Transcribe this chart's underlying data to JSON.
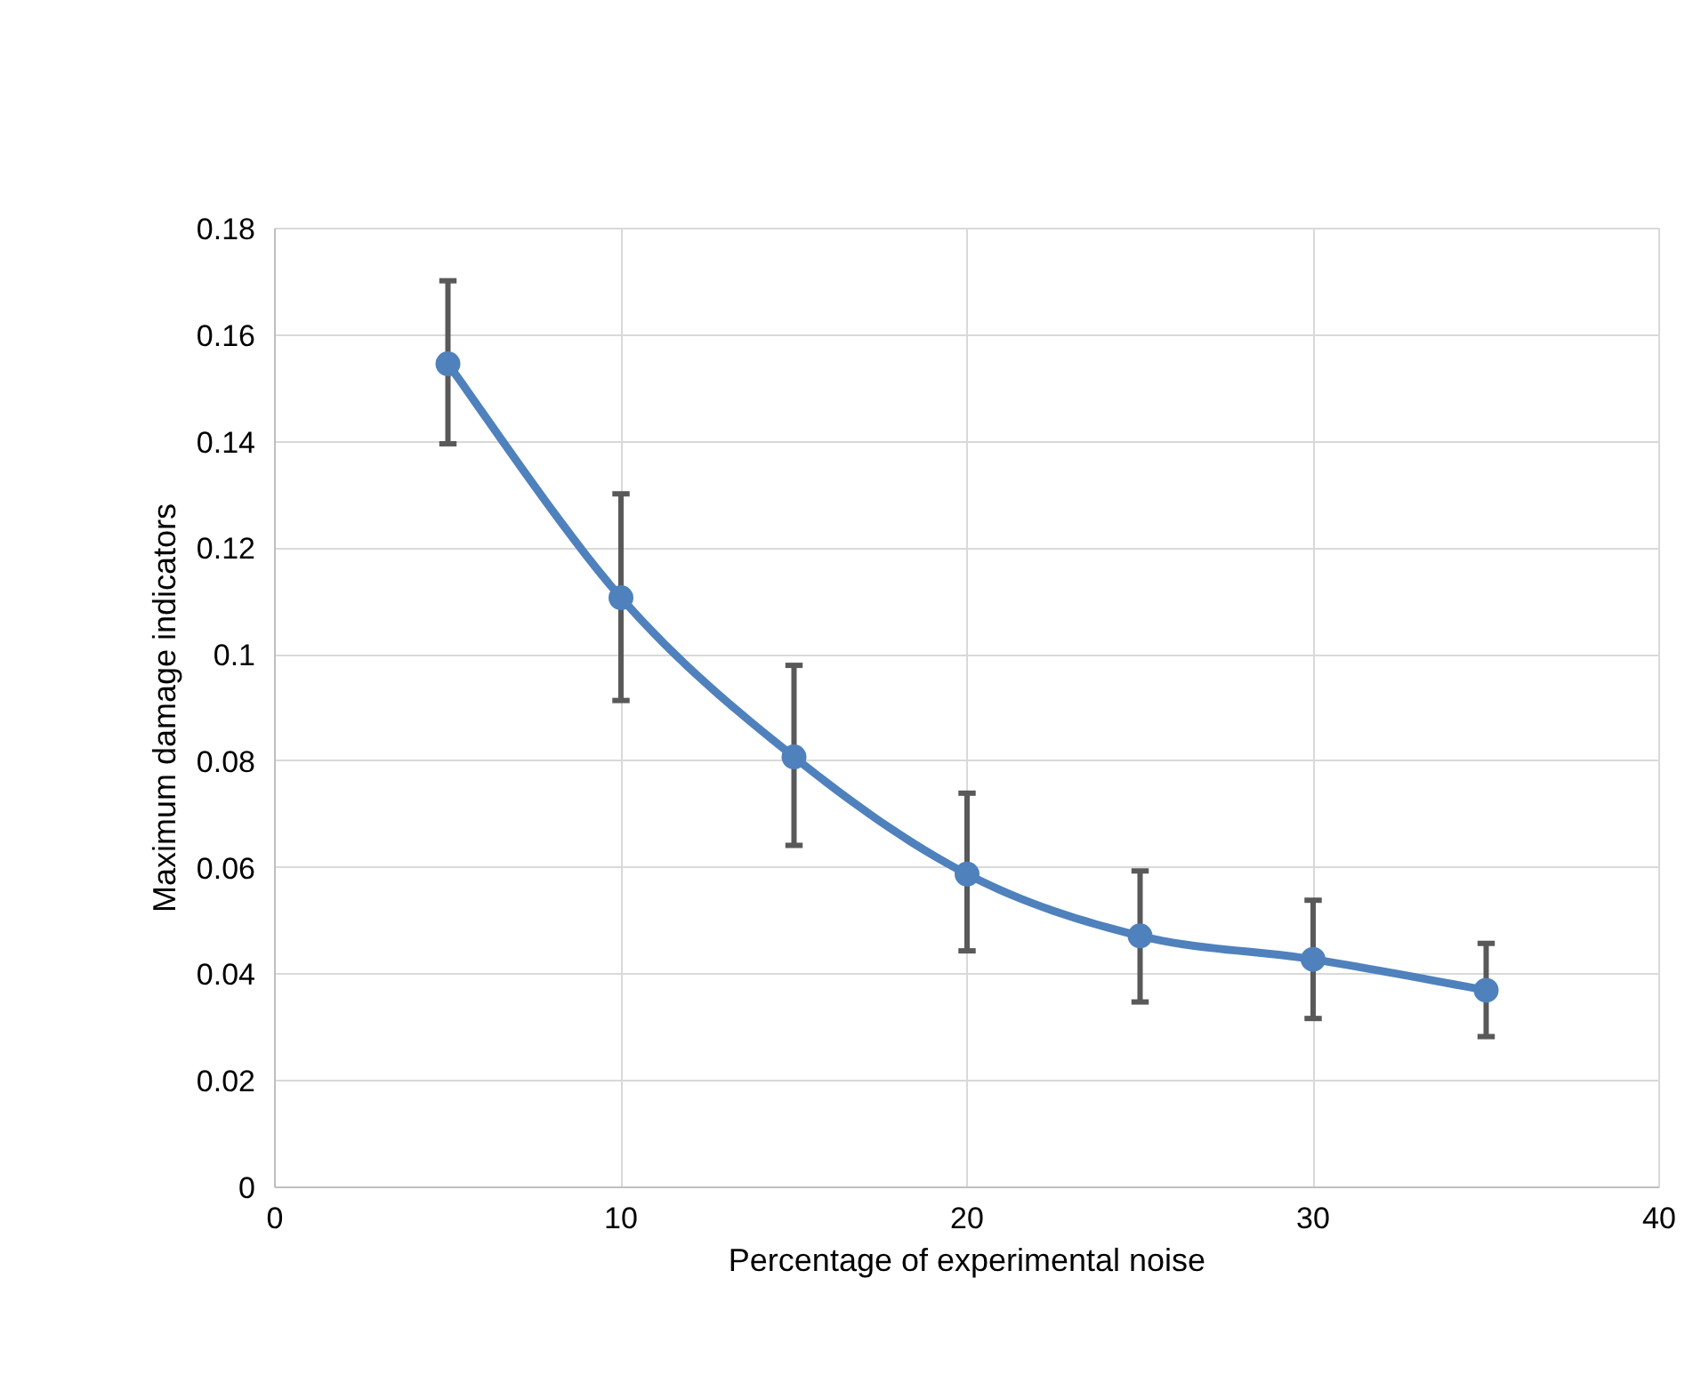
{
  "chart_data": {
    "type": "line",
    "xlabel": "Percentage of experimental noise",
    "ylabel": "Maximum damage indicators",
    "x": [
      5,
      10,
      15,
      20,
      25,
      30,
      35
    ],
    "series": [
      {
        "color": "#4f81bd",
        "values": [
          0.1546,
          0.1107,
          0.0808,
          0.0588,
          0.0472,
          0.0428,
          0.037
        ],
        "errors": [
          [
            0.1396,
            0.1702
          ],
          [
            0.0914,
            0.1302
          ],
          [
            0.0642,
            0.098
          ],
          [
            0.0444,
            0.074
          ],
          [
            0.0348,
            0.0594
          ],
          [
            0.0317,
            0.0539
          ],
          [
            0.0283,
            0.0458
          ]
        ]
      }
    ],
    "xlim": [
      0,
      40
    ],
    "xticks": [
      0,
      10,
      20,
      30,
      40
    ],
    "ylim": [
      0,
      0.18
    ],
    "yticks": [
      0,
      0.02,
      0.04,
      0.06,
      0.08,
      {
        "value": 0.1,
        "label": "0.1"
      },
      0.12,
      0.14,
      0.16,
      0.18
    ],
    "grid": true,
    "marker": "circle",
    "line_style": "solid"
  }
}
